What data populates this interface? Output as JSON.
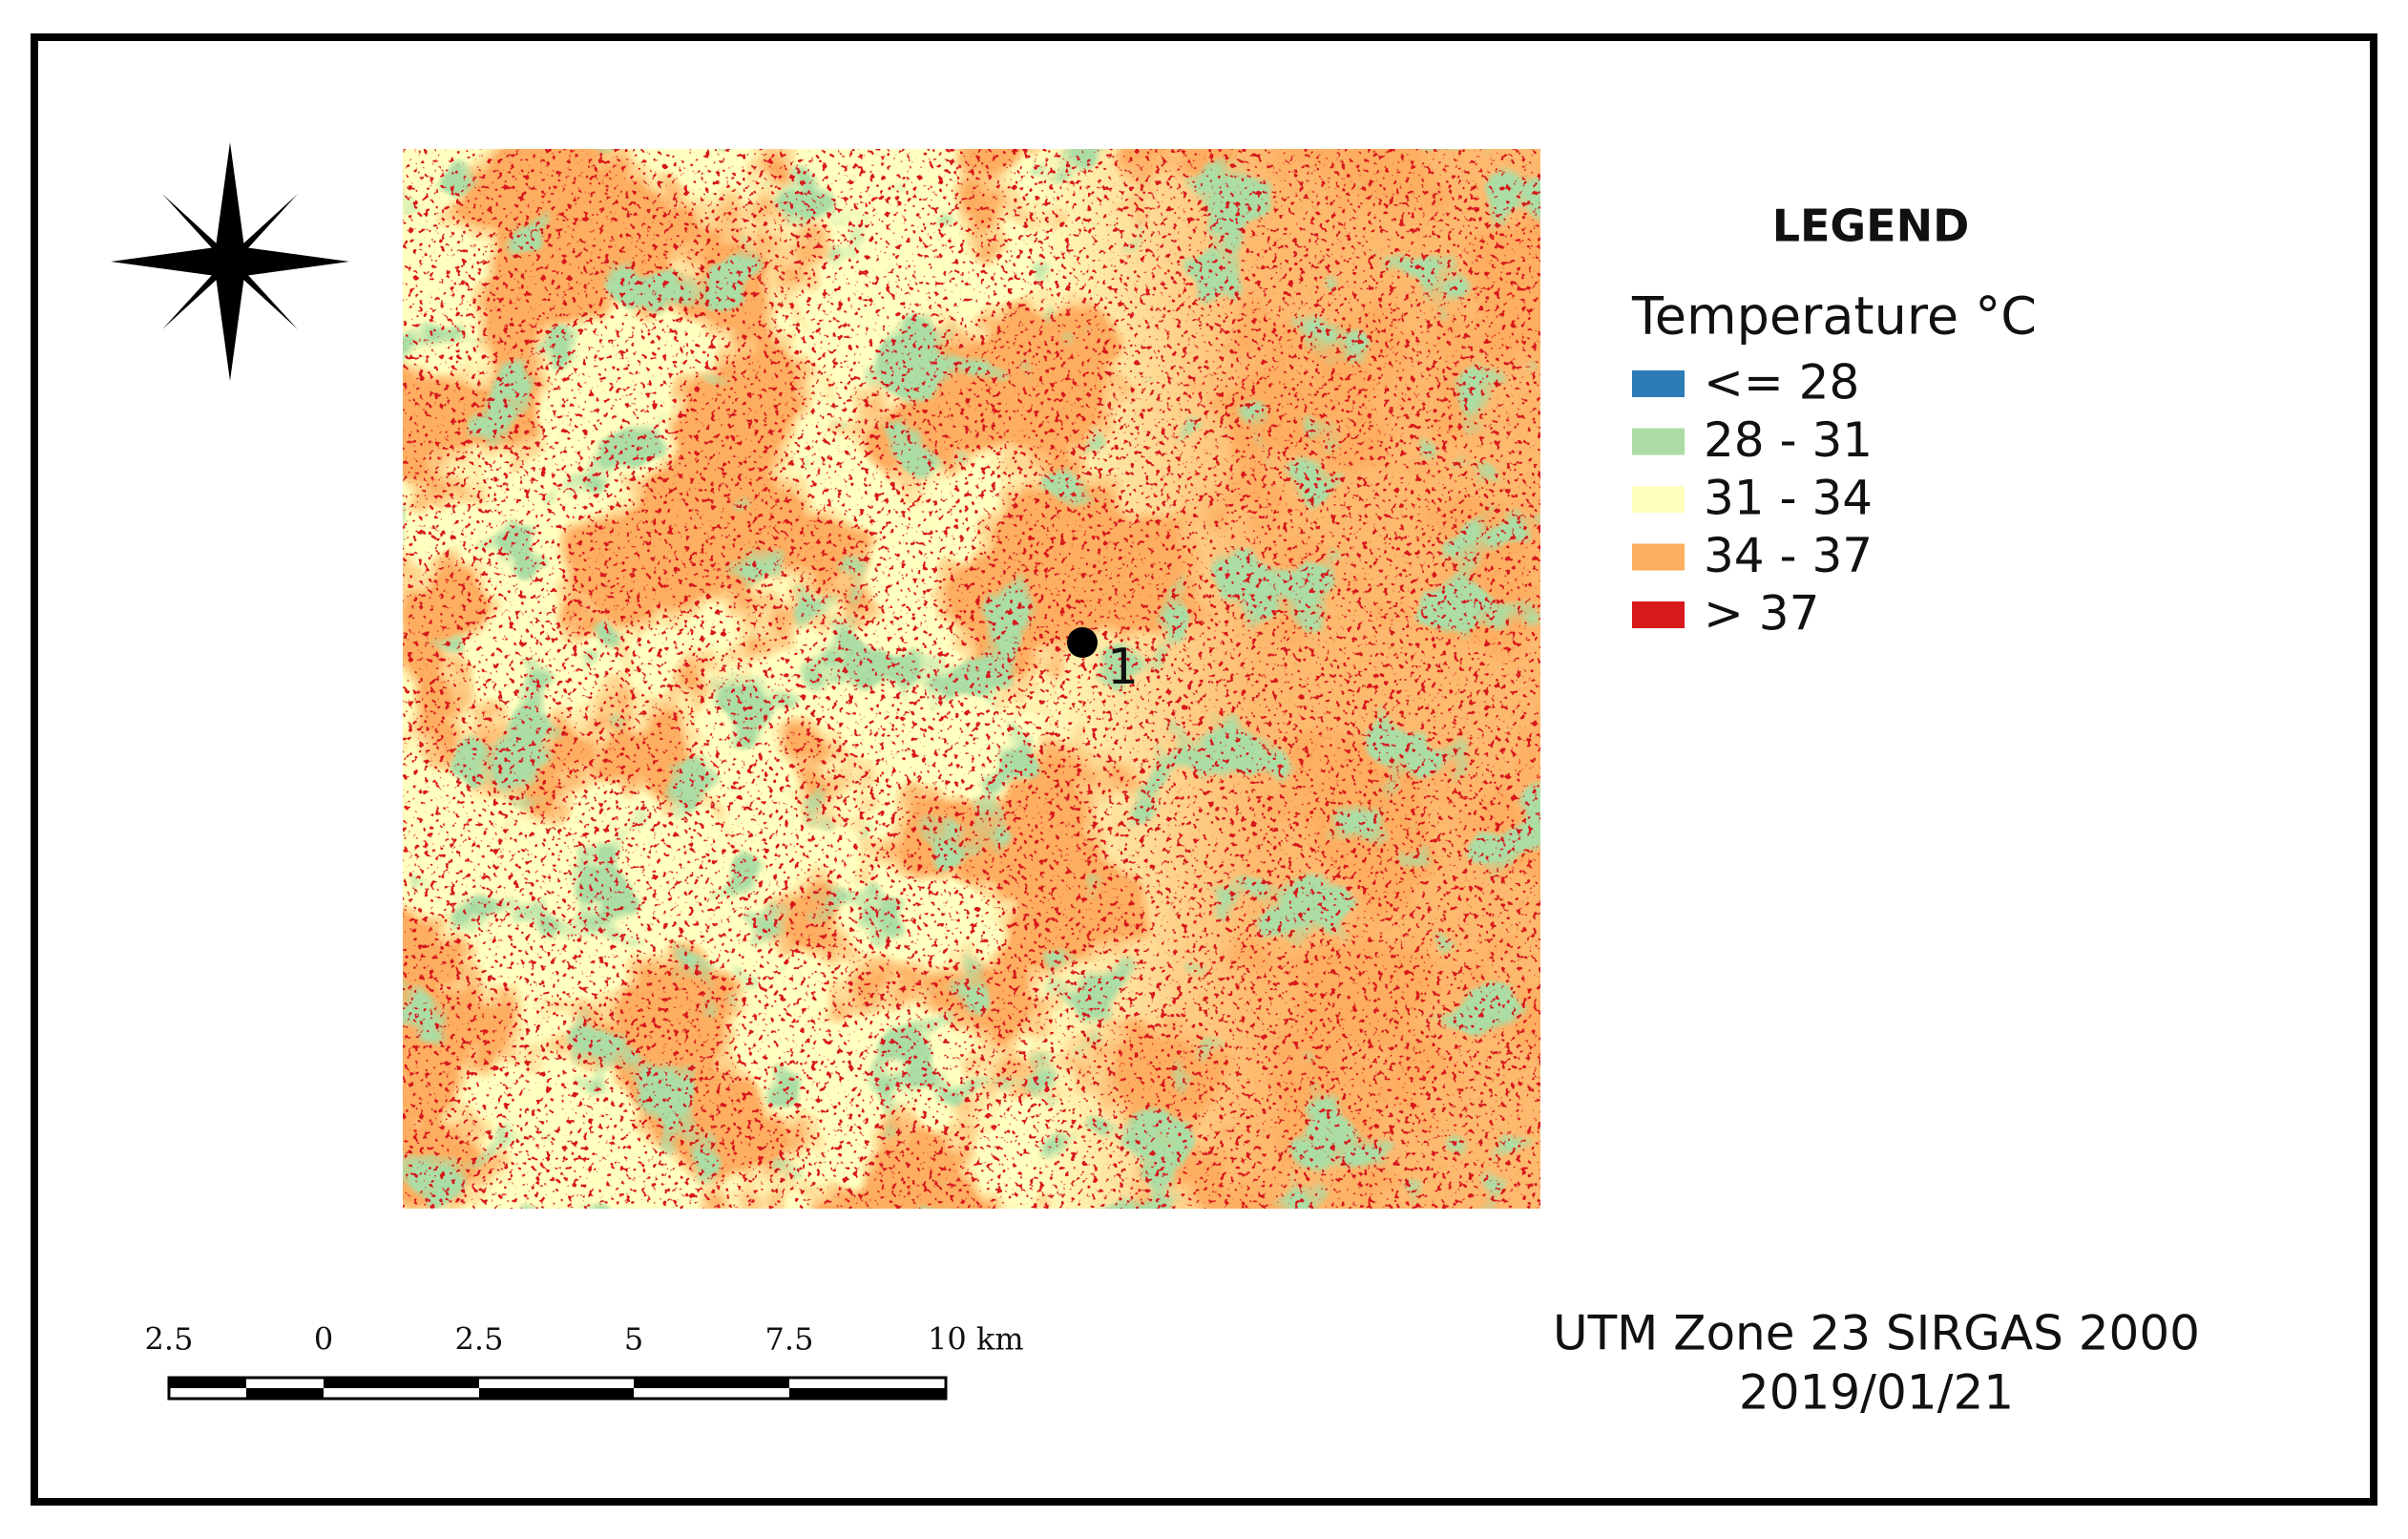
{
  "legend": {
    "title": "LEGEND",
    "subtitle": "Temperature °C",
    "items": [
      {
        "label": "<= 28",
        "color": "#2c7bb6"
      },
      {
        "label": "28 - 31",
        "color": "#abdda4"
      },
      {
        "label": "31 - 34",
        "color": "#ffffbf"
      },
      {
        "label": "34 - 37",
        "color": "#fdae61"
      },
      {
        "label": "> 37",
        "color": "#d7191c"
      }
    ]
  },
  "map": {
    "point": {
      "label": "1"
    }
  },
  "scale_bar": {
    "labels": [
      "2.5",
      "0",
      "2.5",
      "5",
      "7.5",
      "10 km"
    ]
  },
  "footer": {
    "projection": "UTM Zone 23 SIRGAS 2000",
    "date": "2019/01/21"
  }
}
